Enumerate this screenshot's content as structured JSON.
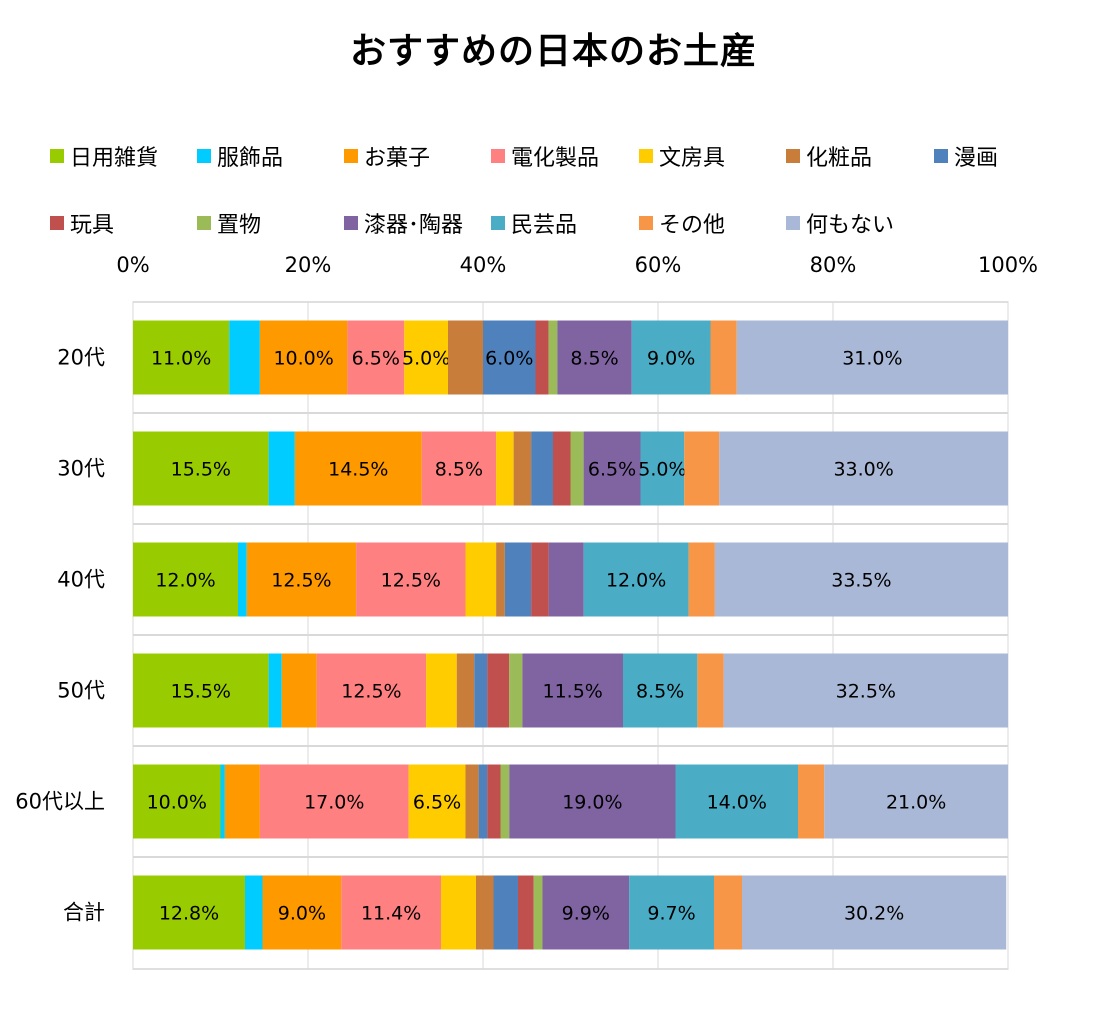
{
  "chart_data": {
    "type": "bar",
    "orientation": "horizontal",
    "stacked": "percent",
    "title": "おすすめの日本のお土産",
    "xlabel": "",
    "ylabel": "",
    "xlim": [
      0,
      100
    ],
    "x_ticks": [
      "0%",
      "20%",
      "40%",
      "60%",
      "80%",
      "100%"
    ],
    "x_tick_values": [
      0,
      20,
      40,
      60,
      80,
      100
    ],
    "x_axis_position": "top",
    "grid": true,
    "legend_position": "top",
    "categories": [
      "20代",
      "30代",
      "40代",
      "50代",
      "60代以上",
      "合計"
    ],
    "series": [
      {
        "name": "日用雑貨",
        "color": "#99CC00",
        "values": [
          11.0,
          15.5,
          12.0,
          15.5,
          10.0,
          12.8
        ],
        "labels": [
          "11.0%",
          "15.5%",
          "12.0%",
          "15.5%",
          "10.0%",
          "12.8%"
        ]
      },
      {
        "name": "服飾品",
        "color": "#00CCFF",
        "values": [
          3.5,
          3.0,
          1.0,
          1.5,
          0.5,
          2.0
        ],
        "labels": [
          "",
          "",
          "",
          "",
          "",
          ""
        ]
      },
      {
        "name": "お菓子",
        "color": "#FF9900",
        "values": [
          10.0,
          14.5,
          12.5,
          4.0,
          4.0,
          9.0
        ],
        "labels": [
          "10.0%",
          "14.5%",
          "12.5%",
          "",
          "",
          "9.0%"
        ]
      },
      {
        "name": "電化製品",
        "color": "#FF8080",
        "values": [
          6.5,
          8.5,
          12.5,
          12.5,
          17.0,
          11.4
        ],
        "labels": [
          "6.5%",
          "8.5%",
          "12.5%",
          "12.5%",
          "17.0%",
          "11.4%"
        ]
      },
      {
        "name": "文房具",
        "color": "#FFCC00",
        "values": [
          5.0,
          2.0,
          3.5,
          3.5,
          6.5,
          4.0
        ],
        "labels": [
          "5.0%",
          "",
          "",
          "",
          "6.5%",
          ""
        ]
      },
      {
        "name": "化粧品",
        "color": "#C87D3A",
        "values": [
          4.0,
          2.0,
          1.0,
          2.0,
          1.5,
          2.0
        ],
        "labels": [
          "",
          "",
          "",
          "",
          "",
          ""
        ]
      },
      {
        "name": "漫画",
        "color": "#4F81BD",
        "values": [
          6.0,
          2.5,
          3.0,
          1.5,
          1.0,
          2.8
        ],
        "labels": [
          "6.0%",
          "",
          "",
          "",
          "",
          ""
        ]
      },
      {
        "name": "玩具",
        "color": "#C0504D",
        "values": [
          1.5,
          2.0,
          2.0,
          2.5,
          1.5,
          1.8
        ],
        "labels": [
          "",
          "",
          "",
          "",
          "",
          ""
        ]
      },
      {
        "name": "置物",
        "color": "#9BBB59",
        "values": [
          1.0,
          1.5,
          0.0,
          1.5,
          1.0,
          1.0
        ],
        "labels": [
          "",
          "",
          "",
          "",
          "",
          ""
        ]
      },
      {
        "name": "漆器･陶器",
        "color": "#8064A2",
        "values": [
          8.5,
          6.5,
          4.0,
          11.5,
          19.0,
          9.9
        ],
        "labels": [
          "8.5%",
          "6.5%",
          "",
          "11.5%",
          "19.0%",
          "9.9%"
        ]
      },
      {
        "name": "民芸品",
        "color": "#4BACC6",
        "values": [
          9.0,
          5.0,
          12.0,
          8.5,
          14.0,
          9.7
        ],
        "labels": [
          "9.0%",
          "5.0%",
          "12.0%",
          "8.5%",
          "14.0%",
          "9.7%"
        ]
      },
      {
        "name": "その他",
        "color": "#F79646",
        "values": [
          3.0,
          4.0,
          3.0,
          3.0,
          3.0,
          3.2
        ],
        "labels": [
          "",
          "",
          "",
          "",
          "",
          ""
        ]
      },
      {
        "name": "何もない",
        "color": "#A9B8D6",
        "values": [
          31.0,
          33.0,
          33.5,
          32.5,
          21.0,
          30.2
        ],
        "labels": [
          "31.0%",
          "33.0%",
          "33.5%",
          "32.5%",
          "21.0%",
          "30.2%"
        ]
      }
    ]
  }
}
